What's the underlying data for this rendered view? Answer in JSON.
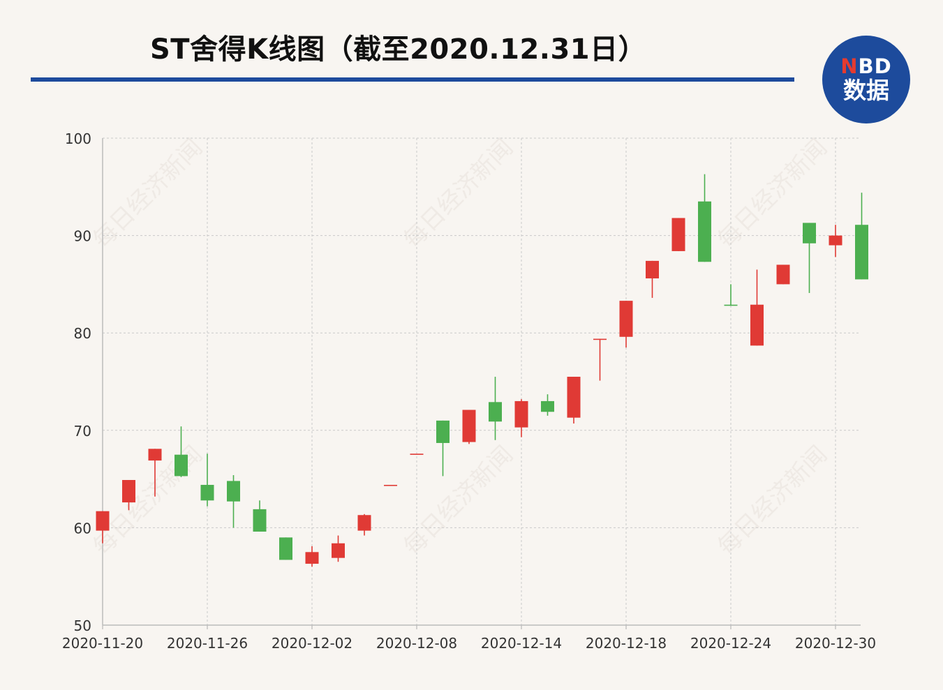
{
  "header": {
    "title": "ST舍得K线图（截至2020.12.31日）"
  },
  "logo": {
    "top_prefix": "N",
    "top_rest": "BD",
    "bottom": "数据"
  },
  "watermark": "每日经济新闻",
  "colors": {
    "up": "#e03a35",
    "down": "#4caf50",
    "title_rule": "#1d4a9c",
    "logo_bg": "#1d4b9c",
    "background": "#f8f5f1"
  },
  "chart_data": {
    "type": "candlestick",
    "ylim": [
      50,
      100
    ],
    "yticks": [
      50,
      60,
      70,
      80,
      90,
      100
    ],
    "xticks": [
      "2020-11-20",
      "2020-11-26",
      "2020-12-02",
      "2020-12-08",
      "2020-12-14",
      "2020-12-18",
      "2020-12-24",
      "2020-12-30"
    ],
    "grid": true,
    "categories": [
      "2020-11-20",
      "2020-11-23",
      "2020-11-24",
      "2020-11-25",
      "2020-11-26",
      "2020-11-27",
      "2020-11-30",
      "2020-12-01",
      "2020-12-02",
      "2020-12-03",
      "2020-12-04",
      "2020-12-07",
      "2020-12-08",
      "2020-12-09",
      "2020-12-10",
      "2020-12-11",
      "2020-12-14",
      "2020-12-15",
      "2020-12-16",
      "2020-12-17",
      "2020-12-18",
      "2020-12-21",
      "2020-12-22",
      "2020-12-23",
      "2020-12-24",
      "2020-12-25",
      "2020-12-28",
      "2020-12-29",
      "2020-12-30",
      "2020-12-31"
    ],
    "series": [
      {
        "open": 59.7,
        "close": 61.7,
        "high": 61.7,
        "low": 58.4
      },
      {
        "open": 62.6,
        "close": 64.9,
        "high": 64.9,
        "low": 61.8
      },
      {
        "open": 66.9,
        "close": 68.1,
        "high": 68.1,
        "low": 63.2
      },
      {
        "open": 67.5,
        "close": 65.3,
        "high": 70.4,
        "low": 65.2
      },
      {
        "open": 64.4,
        "close": 62.8,
        "high": 67.6,
        "low": 62.2
      },
      {
        "open": 64.8,
        "close": 62.7,
        "high": 65.4,
        "low": 60.0
      },
      {
        "open": 61.9,
        "close": 59.6,
        "high": 62.8,
        "low": 59.6
      },
      {
        "open": 59.0,
        "close": 56.7,
        "high": 59.0,
        "low": 56.7
      },
      {
        "open": 56.3,
        "close": 57.5,
        "high": 58.1,
        "low": 56.0
      },
      {
        "open": 56.9,
        "close": 58.4,
        "high": 59.2,
        "low": 56.5
      },
      {
        "open": 59.7,
        "close": 61.3,
        "high": 61.4,
        "low": 59.2
      },
      {
        "open": 64.4,
        "close": 64.4,
        "high": 64.4,
        "low": 64.4
      },
      {
        "open": 67.6,
        "close": 67.6,
        "high": 67.6,
        "low": 67.6
      },
      {
        "open": 71.0,
        "close": 68.7,
        "high": 71.0,
        "low": 65.3
      },
      {
        "open": 68.8,
        "close": 72.1,
        "high": 72.1,
        "low": 68.6
      },
      {
        "open": 72.9,
        "close": 70.9,
        "high": 75.5,
        "low": 69.0
      },
      {
        "open": 70.3,
        "close": 73.0,
        "high": 73.2,
        "low": 69.3
      },
      {
        "open": 73.0,
        "close": 71.9,
        "high": 73.7,
        "low": 71.5
      },
      {
        "open": 71.3,
        "close": 75.5,
        "high": 75.5,
        "low": 70.7
      },
      {
        "open": 79.4,
        "close": 79.4,
        "high": 79.4,
        "low": 75.1
      },
      {
        "open": 79.6,
        "close": 83.3,
        "high": 83.3,
        "low": 78.5
      },
      {
        "open": 85.6,
        "close": 87.4,
        "high": 87.4,
        "low": 83.6
      },
      {
        "open": 88.4,
        "close": 91.8,
        "high": 91.8,
        "low": 88.4
      },
      {
        "open": 93.5,
        "close": 87.3,
        "high": 96.3,
        "low": 87.3
      },
      {
        "open": 82.9,
        "close": 82.8,
        "high": 85.0,
        "low": 82.8
      },
      {
        "open": 78.7,
        "close": 82.9,
        "high": 86.5,
        "low": 78.7
      },
      {
        "open": 85.0,
        "close": 87.0,
        "high": 87.0,
        "low": 85.0
      },
      {
        "open": 91.3,
        "close": 89.2,
        "high": 91.3,
        "low": 84.1
      },
      {
        "open": 89.0,
        "close": 90.0,
        "high": 91.1,
        "low": 87.8
      },
      {
        "open": 91.1,
        "close": 85.5,
        "high": 94.4,
        "low": 85.5
      }
    ]
  }
}
